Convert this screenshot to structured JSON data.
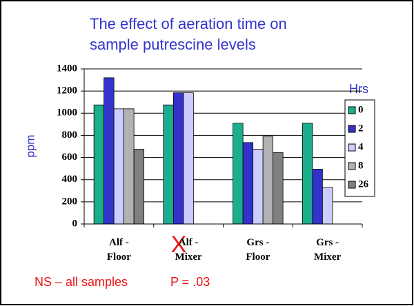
{
  "chart_data": {
    "type": "bar",
    "title": "The effect of aeration time on sample putrescine levels",
    "y_label": "ppm",
    "legend_title": "Hrs",
    "categories": [
      "Alf - Floor",
      "Alf - Mixer",
      "Grs - Floor",
      "Grs - Mixer"
    ],
    "series": [
      {
        "name": "0",
        "color": "#1aae8c",
        "values": [
          1075,
          1075,
          910,
          910
        ]
      },
      {
        "name": "2",
        "color": "#3333cc",
        "values": [
          1320,
          1185,
          735,
          495
        ]
      },
      {
        "name": "4",
        "color": "#ccccff",
        "values": [
          1040,
          1185,
          675,
          330
        ]
      },
      {
        "name": "8",
        "color": "#b2b2b2",
        "values": [
          1040,
          null,
          795,
          null
        ]
      },
      {
        "name": "26",
        "color": "#808080",
        "values": [
          675,
          null,
          645,
          null
        ]
      }
    ],
    "ylim": [
      0,
      1400
    ],
    "yticks": [
      0,
      200,
      400,
      600,
      800,
      1000,
      1200,
      1400
    ],
    "grid": true,
    "legend_position": "right",
    "annotations": [
      "NS – all samples",
      "P = .03",
      "X"
    ]
  }
}
